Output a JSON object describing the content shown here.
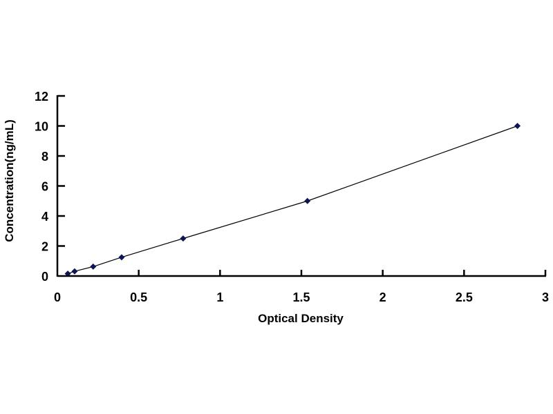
{
  "chart_data": {
    "type": "scatter",
    "title": "",
    "xlabel": "Optical Density",
    "ylabel": "Concentration(ng/mL)",
    "xlim": [
      0,
      3
    ],
    "ylim": [
      0,
      12
    ],
    "x_ticks": [
      "0",
      "0.5",
      "1",
      "1.5",
      "2",
      "2.5",
      "3"
    ],
    "y_ticks": [
      "0",
      "2",
      "4",
      "6",
      "8",
      "10",
      "12"
    ],
    "grid": false,
    "legend": "none",
    "trendline": true,
    "marker": "diamond",
    "color": "#0d1652",
    "series": [
      {
        "x": [
          0.064,
          0.106,
          0.22,
          0.395,
          0.773,
          1.537,
          2.828
        ],
        "y": [
          0.156,
          0.312,
          0.625,
          1.25,
          2.5,
          5,
          10
        ]
      }
    ]
  }
}
